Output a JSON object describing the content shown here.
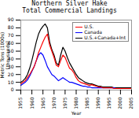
{
  "chart_data": {
    "type": "line",
    "title": "Northern Silver Hake\nTotal Commercial Landings",
    "xlabel": "Year",
    "ylabel": "Metric Tons (1000s)\n[thousands]",
    "x": [
      1955,
      1956,
      1957,
      1958,
      1959,
      1960,
      1961,
      1962,
      1963,
      1964,
      1965,
      1966,
      1967,
      1968,
      1969,
      1970,
      1971,
      1972,
      1973,
      1974,
      1975,
      1976,
      1977,
      1978,
      1979,
      1980,
      1981,
      1982,
      1983,
      1984,
      1985,
      1986,
      1987,
      1988,
      1989,
      1990,
      1991,
      1992,
      1993,
      1994,
      1995,
      1996,
      1997,
      1998,
      1999,
      2000,
      2001,
      2002,
      2003,
      2004,
      2005
    ],
    "series": [
      {
        "name": "U.S.",
        "color": "#ff0000",
        "values": [
          8,
          10,
          12,
          16,
          20,
          25,
          30,
          38,
          48,
          55,
          62,
          68,
          72,
          58,
          50,
          42,
          32,
          30,
          38,
          45,
          42,
          35,
          28,
          26,
          22,
          16,
          12,
          10,
          9,
          8,
          7,
          6,
          7,
          6,
          5,
          4,
          4,
          3,
          3,
          3,
          3,
          3,
          2,
          2,
          2,
          2,
          2,
          2,
          2,
          2,
          2
        ]
      },
      {
        "name": "Canada",
        "color": "#0000ff",
        "values": [
          6,
          8,
          10,
          13,
          18,
          24,
          30,
          38,
          45,
          48,
          45,
          38,
          30,
          25,
          20,
          18,
          15,
          12,
          14,
          16,
          14,
          12,
          10,
          10,
          9,
          8,
          7,
          6,
          5,
          5,
          4,
          4,
          3,
          3,
          3,
          3,
          3,
          3,
          3,
          3,
          3,
          3,
          3,
          2,
          2,
          2,
          2,
          2,
          2,
          2,
          2
        ]
      },
      {
        "name": "U.S.+Canada+Int",
        "color": "#000000",
        "values": [
          10,
          12,
          15,
          20,
          28,
          38,
          50,
          62,
          72,
          78,
          82,
          85,
          80,
          62,
          52,
          45,
          35,
          32,
          45,
          55,
          50,
          42,
          35,
          30,
          25,
          20,
          16,
          14,
          12,
          10,
          9,
          8,
          8,
          7,
          6,
          5,
          5,
          4,
          4,
          4,
          4,
          4,
          3,
          3,
          3,
          3,
          3,
          3,
          3,
          3,
          3
        ]
      }
    ],
    "xlim": [
      1955,
      2005
    ],
    "ylim": [
      0,
      90
    ],
    "xticks": [
      1955,
      1960,
      1965,
      1970,
      1975,
      1980,
      1985,
      1990,
      1995,
      2000,
      2005
    ],
    "yticks": [
      0,
      10,
      20,
      30,
      40,
      50,
      60,
      70,
      80,
      90
    ],
    "legend": "upper right"
  }
}
